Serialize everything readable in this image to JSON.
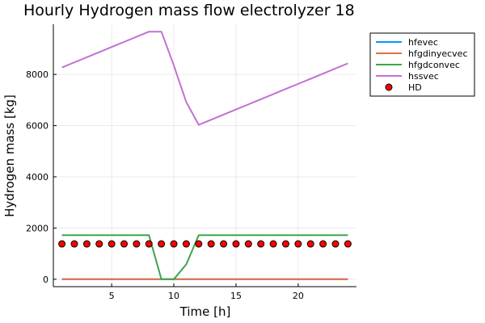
{
  "chart_data": {
    "type": "line",
    "title": "Hourly Hydrogen mass flow electrolyzer 18",
    "xlabel": "Time [h]",
    "ylabel": "Hydrogen mass [kg]",
    "xlim": [
      0.31,
      24.69
    ],
    "ylim": [
      -290,
      9960
    ],
    "xticks": [
      5,
      10,
      15,
      20
    ],
    "yticks": [
      0,
      2000,
      4000,
      6000,
      8000
    ],
    "grid": true,
    "legend_position": "top-right outside",
    "x": [
      1,
      2,
      3,
      4,
      5,
      6,
      7,
      8,
      9,
      10,
      11,
      12,
      13,
      14,
      15,
      16,
      17,
      18,
      19,
      20,
      21,
      22,
      23,
      24
    ],
    "series": [
      {
        "name": "hfevec",
        "kind": "line",
        "color": "#009af9",
        "values": [
          0,
          0,
          0,
          0,
          0,
          0,
          0,
          0,
          0,
          0,
          0,
          0,
          0,
          0,
          0,
          0,
          0,
          0,
          0,
          0,
          0,
          0,
          0,
          0
        ]
      },
      {
        "name": "hfgdinyecvec",
        "kind": "line",
        "color": "#e26f46",
        "values": [
          0,
          0,
          0,
          0,
          0,
          0,
          0,
          0,
          0,
          0,
          0,
          0,
          0,
          0,
          0,
          0,
          0,
          0,
          0,
          0,
          0,
          0,
          0,
          0
        ]
      },
      {
        "name": "hfgdconvec",
        "kind": "line",
        "color": "#3da44d",
        "values": [
          1720,
          1720,
          1720,
          1720,
          1720,
          1720,
          1720,
          1720,
          0,
          0,
          580,
          1720,
          1720,
          1720,
          1720,
          1720,
          1720,
          1720,
          1720,
          1720,
          1720,
          1720,
          1720,
          1720
        ]
      },
      {
        "name": "hssvec",
        "kind": "line",
        "color": "#c271d2",
        "values": [
          8270,
          8470,
          8670,
          8870,
          9070,
          9270,
          9470,
          9670,
          9670,
          8350,
          6920,
          6030,
          6230,
          6430,
          6630,
          6830,
          7030,
          7230,
          7430,
          7630,
          7830,
          8030,
          8230,
          8430
        ]
      },
      {
        "name": "HD",
        "kind": "scatter",
        "color": "#ff0000",
        "values": [
          1380,
          1380,
          1380,
          1380,
          1380,
          1380,
          1380,
          1380,
          1380,
          1380,
          1380,
          1380,
          1380,
          1380,
          1380,
          1380,
          1380,
          1380,
          1380,
          1380,
          1380,
          1380,
          1380,
          1380
        ]
      }
    ]
  }
}
